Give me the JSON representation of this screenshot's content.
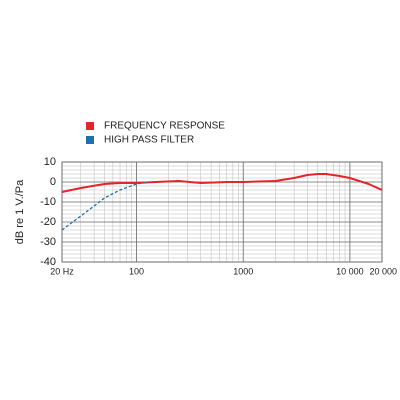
{
  "chart_data": {
    "type": "line",
    "ylabel": "dB re 1 V./Pa",
    "xscale": "log",
    "xlim": [
      20,
      20000
    ],
    "ylim": [
      -40,
      10
    ],
    "xticks": [
      {
        "value": 20,
        "label": "20 Hz"
      },
      100,
      1000,
      {
        "value": 10000,
        "label": "10 000"
      },
      {
        "value": 20000,
        "label": "20 000"
      }
    ],
    "yticks": [
      10,
      0,
      -10,
      -20,
      -30,
      -40
    ],
    "x_minor_grid": [
      30,
      40,
      50,
      60,
      70,
      80,
      90,
      200,
      300,
      400,
      500,
      600,
      700,
      800,
      900,
      2000,
      3000,
      4000,
      5000,
      6000,
      7000,
      8000,
      9000
    ],
    "y_minor_grid": [
      8,
      6,
      4,
      2,
      -2,
      -4,
      -6,
      -8,
      -12,
      -14,
      -16,
      -18,
      -22,
      -24,
      -26,
      -28,
      -32,
      -34,
      -36,
      -38
    ],
    "grid": true,
    "series": [
      {
        "name": "FREQUENCY RESPONSE",
        "color": "#e2262b",
        "dashed": false,
        "x": [
          20,
          30,
          50,
          70,
          100,
          150,
          250,
          400,
          700,
          1000,
          2000,
          3000,
          4000,
          5000,
          6000,
          8000,
          10000,
          15000,
          20000
        ],
        "values": [
          -5,
          -3,
          -1,
          -0.5,
          -0.5,
          0,
          0.5,
          -0.5,
          0,
          0,
          0.5,
          2,
          3.5,
          4,
          4,
          3,
          2,
          -1,
          -4
        ]
      },
      {
        "name": "HIGH PASS FILTER",
        "color": "#1f6fb4",
        "dashed": true,
        "x": [
          20,
          30,
          40,
          50,
          70,
          100,
          130
        ],
        "values": [
          -24,
          -17,
          -12,
          -8,
          -4,
          -1,
          0
        ]
      }
    ]
  }
}
